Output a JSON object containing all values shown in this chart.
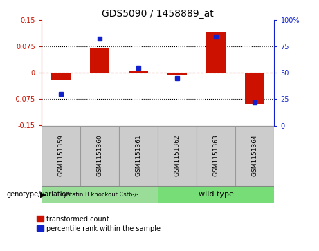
{
  "title": "GDS5090 / 1458889_at",
  "samples": [
    "GSM1151359",
    "GSM1151360",
    "GSM1151361",
    "GSM1151362",
    "GSM1151363",
    "GSM1151364"
  ],
  "red_values": [
    -0.022,
    0.07,
    0.005,
    -0.005,
    0.115,
    -0.09
  ],
  "blue_values": [
    30,
    82,
    55,
    45,
    84,
    22
  ],
  "group1_indices": [
    0,
    1,
    2
  ],
  "group2_indices": [
    3,
    4,
    5
  ],
  "group1_label": "cystatin B knockout Cstb-/-",
  "group2_label": "wild type",
  "group1_color": "#99dd99",
  "group2_color": "#77dd77",
  "sample_box_color": "#cccccc",
  "sample_box_edge": "#999999",
  "ylim_left": [
    -0.15,
    0.15
  ],
  "ylim_right": [
    0,
    100
  ],
  "yticks_left": [
    -0.15,
    -0.075,
    0,
    0.075,
    0.15
  ],
  "yticks_right": [
    0,
    25,
    50,
    75,
    100
  ],
  "ytick_labels_left": [
    "-0.15",
    "-0.075",
    "0",
    "0.075",
    "0.15"
  ],
  "ytick_labels_right": [
    "0",
    "25",
    "50",
    "75",
    "100%"
  ],
  "hlines": [
    0.075,
    -0.075
  ],
  "red_color": "#cc1100",
  "blue_color": "#1122cc",
  "zero_line_color": "#cc1100",
  "legend_red": "transformed count",
  "legend_blue": "percentile rank within the sample",
  "bar_width": 0.5,
  "figsize": [
    4.61,
    3.63
  ],
  "dpi": 100
}
